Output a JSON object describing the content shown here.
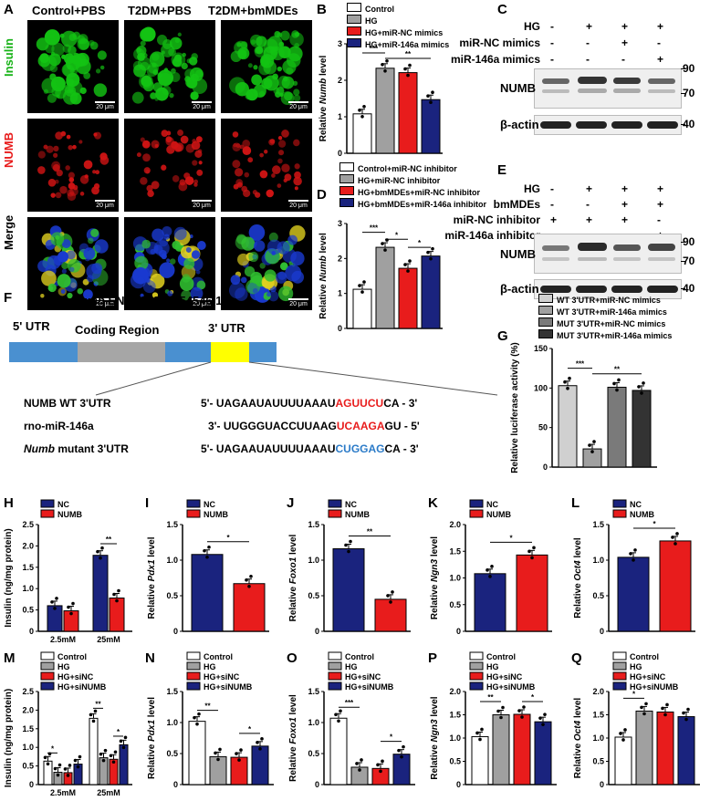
{
  "panelA": {
    "letter": "A",
    "cols": [
      "Control+PBS",
      "T2DM+PBS",
      "T2DM+bmMDEs"
    ],
    "rows": [
      "Insulin",
      "NUMB",
      "Merge"
    ],
    "scale": "20 μm"
  },
  "panelB": {
    "letter": "B",
    "ylabel": "Relative Numb level",
    "legend": [
      "Control",
      "HG",
      "HG+miR-NC mimics",
      "HG+miR-146a mimics"
    ]
  },
  "panelC": {
    "letter": "C",
    "rows": [
      "HG",
      "miR-NC mimics",
      "miR-146a mimics"
    ],
    "signs": [
      [
        "-",
        "+",
        "+",
        "+"
      ],
      [
        "-",
        "-",
        "+",
        "-"
      ],
      [
        "-",
        "-",
        "-",
        "+"
      ]
    ],
    "blots": [
      "NUMB",
      "β-actin"
    ],
    "mw": [
      "90",
      "70",
      "40"
    ]
  },
  "panelD": {
    "letter": "D",
    "ylabel": "Relative Numb level",
    "legend": [
      "Control+miR-NC inhibitor",
      "HG+miR-NC inhibitor",
      "HG+bmMDEs+miR-NC inhibitor",
      "HG+bmMDEs+miR-146a inhibitor"
    ]
  },
  "panelE": {
    "letter": "E",
    "rows": [
      "HG",
      "bmMDEs",
      "miR-NC inhibitor",
      "miR-146a inhibitor"
    ],
    "signs": [
      [
        "-",
        "+",
        "+",
        "+"
      ],
      [
        "-",
        "-",
        "+",
        "+"
      ],
      [
        "+",
        "+",
        "+",
        "-"
      ],
      [
        "-",
        "-",
        "-",
        "+"
      ]
    ],
    "blots": [
      "NUMB",
      "β-actin"
    ],
    "mw": [
      "90",
      "70",
      "40"
    ]
  },
  "panelF": {
    "letter": "F",
    "title_gene": "Numb",
    "title_id": " ENST00000554546.1",
    "regions": [
      "5' UTR",
      "Coding Region",
      "3' UTR"
    ],
    "seq": [
      {
        "label": "NUMB WT 3'UTR",
        "a": "5'- UAGAAUAUUUUAAAU",
        "b": "AGUUCU",
        "c": "CA  - 3'"
      },
      {
        "label": "rno-miR-146a",
        "a": "3'- UUGGGUACCUUAAG",
        "b": "UCAAGA",
        "c": "GU  - 5'"
      },
      {
        "label": " mutant 3'UTR",
        "gene": "Numb",
        "a": "5'- UAGAAUAUUUUAAAU",
        "b": "CUGGAG",
        "c": "CA  - 3'"
      }
    ]
  },
  "panelG": {
    "letter": "G",
    "ylabel": "Relative luciferase activity (%)",
    "legend": [
      "WT 3'UTR+miR-NC mimics",
      "WT 3'UTR+miR-146a mimics",
      "MUT 3'UTR+miR-NC mimics",
      "MUT 3'UTR+miR-146a mimics"
    ]
  },
  "letters2": [
    "H",
    "I",
    "J",
    "K",
    "L",
    "M",
    "N",
    "O",
    "P",
    "Q"
  ],
  "legNC": [
    "NC",
    "NUMB"
  ],
  "leg4": [
    "Control",
    "HG",
    "HG+siNC",
    "HG+siNUMB"
  ],
  "colors": {
    "blue": "#1a237e",
    "red": "#e81c1c",
    "grey": "#a0a0a0",
    "white": "#ffffff",
    "lgrey": "#d0d0d0",
    "mgrey": "#7a7a7a",
    "dgrey": "#333333"
  },
  "chart_data": [
    {
      "panel": "B",
      "type": "bar",
      "categories": [
        "Control",
        "HG",
        "HG+miR-NC mimics",
        "HG+miR-146a mimics"
      ],
      "values": [
        1.08,
        2.33,
        2.21,
        1.47
      ],
      "ylabel": "Relative Numb level",
      "ylim": [
        0,
        3
      ],
      "yticks": [
        0,
        1,
        2,
        3
      ],
      "sig": [
        [
          "0",
          "1",
          "***"
        ],
        [
          "1",
          "3",
          "**"
        ]
      ]
    },
    {
      "panel": "D",
      "type": "bar",
      "categories": [
        "Control+miR-NC inhibitor",
        "HG+miR-NC inhibitor",
        "HG+bmMDEs+miR-NC inhibitor",
        "HG+bmMDEs+miR-146a inhibitor"
      ],
      "values": [
        1.12,
        2.32,
        1.72,
        2.07
      ],
      "ylabel": "Relative Numb level",
      "ylim": [
        0,
        3
      ],
      "yticks": [
        0,
        1,
        2,
        3
      ],
      "sig": [
        [
          "0",
          "1",
          "***"
        ],
        [
          "1",
          "2",
          "*"
        ],
        [
          "2",
          "3",
          "*"
        ]
      ]
    },
    {
      "panel": "G",
      "type": "bar",
      "categories": [
        "WT 3'UTR+miR-NC mimics",
        "WT 3'UTR+miR-146a mimics",
        "MUT 3'UTR+miR-NC mimics",
        "MUT 3'UTR+miR-146a mimics"
      ],
      "values": [
        103,
        23,
        101,
        97
      ],
      "ylabel": "Relative luciferase activity (%)",
      "ylim": [
        0,
        150
      ],
      "yticks": [
        0,
        50,
        100,
        150
      ],
      "sig": [
        [
          "0",
          "1",
          "***"
        ],
        [
          "1",
          "3",
          "**"
        ]
      ]
    },
    {
      "panel": "H",
      "type": "bar",
      "categories": [
        "2.5mM",
        "25mM"
      ],
      "series": [
        {
          "name": "NC",
          "values": [
            0.6,
            1.78
          ]
        },
        {
          "name": "NUMB",
          "values": [
            0.48,
            0.78
          ]
        }
      ],
      "ylabel": "Insulin (ng/mg protein)",
      "ylim": [
        0,
        2.5
      ],
      "yticks": [
        0,
        0.5,
        1.0,
        1.5,
        2.0,
        2.5
      ],
      "sig": "**"
    },
    {
      "panel": "I",
      "type": "bar",
      "categories": [
        "NC",
        "NUMB"
      ],
      "values": [
        1.08,
        0.67
      ],
      "ylabel": "Relative Pdx1 level",
      "ylim": [
        0,
        1.5
      ],
      "yticks": [
        0,
        0.5,
        1.0,
        1.5
      ],
      "sig": "*"
    },
    {
      "panel": "J",
      "type": "bar",
      "categories": [
        "NC",
        "NUMB"
      ],
      "values": [
        1.16,
        0.45
      ],
      "ylabel": "Relative Foxo1 level",
      "ylim": [
        0,
        1.5
      ],
      "yticks": [
        0,
        0.5,
        1.0,
        1.5
      ],
      "sig": "**"
    },
    {
      "panel": "K",
      "type": "bar",
      "categories": [
        "NC",
        "NUMB"
      ],
      "values": [
        1.08,
        1.43
      ],
      "ylabel": "Relative Ngn3 level",
      "ylim": [
        0,
        2.0
      ],
      "yticks": [
        0,
        0.5,
        1.0,
        1.5,
        2.0
      ],
      "sig": "*"
    },
    {
      "panel": "L",
      "type": "bar",
      "categories": [
        "NC",
        "NUMB"
      ],
      "values": [
        1.04,
        1.27
      ],
      "ylabel": "Relative Oct4 level",
      "ylim": [
        0,
        1.5
      ],
      "yticks": [
        0,
        0.5,
        1.0,
        1.5
      ],
      "sig": "*"
    },
    {
      "panel": "M",
      "type": "bar",
      "categories": [
        "2.5mM",
        "25mM"
      ],
      "series": [
        {
          "name": "Control",
          "values": [
            0.63,
            1.78
          ]
        },
        {
          "name": "HG",
          "values": [
            0.33,
            0.72
          ]
        },
        {
          "name": "HG+siNC",
          "values": [
            0.32,
            0.68
          ]
        },
        {
          "name": "HG+siNUMB",
          "values": [
            0.55,
            1.07
          ]
        }
      ],
      "ylabel": "Insulin (ng/mg protein)",
      "ylim": [
        0,
        2.5
      ],
      "yticks": [
        0,
        0.5,
        1.0,
        1.5,
        2.0,
        2.5
      ],
      "sig": [
        "*",
        "**",
        "*"
      ]
    },
    {
      "panel": "N",
      "type": "bar",
      "categories": [
        "Control",
        "HG",
        "HG+siNC",
        "HG+siNUMB"
      ],
      "values": [
        1.02,
        0.45,
        0.44,
        0.62
      ],
      "ylabel": "Relative Pdx1 level",
      "ylim": [
        0,
        1.5
      ],
      "yticks": [
        0,
        0.5,
        1.0,
        1.5
      ],
      "sig": [
        "**",
        "*"
      ]
    },
    {
      "panel": "O",
      "type": "bar",
      "categories": [
        "Control",
        "HG",
        "HG+siNC",
        "HG+siNUMB"
      ],
      "values": [
        1.07,
        0.28,
        0.26,
        0.49
      ],
      "ylabel": "Relative Foxo1 level",
      "ylim": [
        0,
        1.5
      ],
      "yticks": [
        0,
        0.5,
        1.0,
        1.5
      ],
      "sig": [
        "***",
        "*"
      ]
    },
    {
      "panel": "P",
      "type": "bar",
      "categories": [
        "Control",
        "HG",
        "HG+siNC",
        "HG+siNUMB"
      ],
      "values": [
        1.03,
        1.5,
        1.51,
        1.35
      ],
      "ylabel": "Relative Ngn3 level",
      "ylim": [
        0,
        2.0
      ],
      "yticks": [
        0,
        0.5,
        1.0,
        1.5,
        2.0
      ],
      "sig": [
        "**",
        "*"
      ]
    },
    {
      "panel": "Q",
      "type": "bar",
      "categories": [
        "Control",
        "HG",
        "HG+siNC",
        "HG+siNUMB"
      ],
      "values": [
        1.02,
        1.58,
        1.56,
        1.46
      ],
      "ylabel": "Relative Oct4 level",
      "ylim": [
        0,
        2.0
      ],
      "yticks": [
        0,
        0.5,
        1.0,
        1.5,
        2.0
      ],
      "sig": [
        "*"
      ]
    }
  ]
}
